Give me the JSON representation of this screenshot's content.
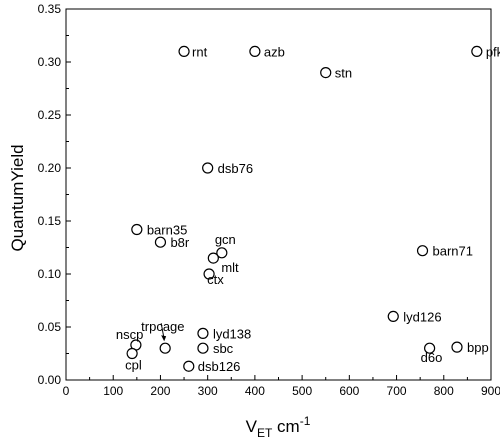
{
  "chart_data": {
    "type": "scatter",
    "title": "",
    "xlabel": {
      "main": "V",
      "sub": "ET",
      "unit": " cm",
      "sup": "-1"
    },
    "ylabel": "QuantumYield",
    "xlim": [
      0,
      900
    ],
    "ylim": [
      0,
      0.35
    ],
    "xticks": [
      "0",
      "100",
      "200",
      "300",
      "400",
      "500",
      "600",
      "700",
      "800",
      "900"
    ],
    "yticks": [
      "0.00",
      "0.05",
      "0.10",
      "0.15",
      "0.20",
      "0.25",
      "0.30",
      "0.35"
    ],
    "grid": false,
    "marker": "open-circle",
    "points": [
      {
        "label": "rnt",
        "x": 250,
        "y": 0.31
      },
      {
        "label": "azb",
        "x": 400,
        "y": 0.31
      },
      {
        "label": "stn",
        "x": 550,
        "y": 0.29
      },
      {
        "label": "pfk",
        "x": 870,
        "y": 0.31
      },
      {
        "label": "dsb76",
        "x": 300,
        "y": 0.2
      },
      {
        "label": "barn35",
        "x": 150,
        "y": 0.142
      },
      {
        "label": "b8r",
        "x": 200,
        "y": 0.13
      },
      {
        "label": "gcn",
        "x": 330,
        "y": 0.12
      },
      {
        "label": "mlt",
        "x": 312,
        "y": 0.115
      },
      {
        "label": "ctx",
        "x": 303,
        "y": 0.1
      },
      {
        "label": "barn71",
        "x": 755,
        "y": 0.122
      },
      {
        "label": "lyd126",
        "x": 693,
        "y": 0.06
      },
      {
        "label": "trpcage",
        "x": 210,
        "y": 0.03
      },
      {
        "label": "nscp",
        "x": 148,
        "y": 0.033
      },
      {
        "label": "cpl",
        "x": 140,
        "y": 0.025
      },
      {
        "label": "lyd138",
        "x": 290,
        "y": 0.044
      },
      {
        "label": "sbc",
        "x": 290,
        "y": 0.03
      },
      {
        "label": "dsb126",
        "x": 260,
        "y": 0.013
      },
      {
        "label": "d6o",
        "x": 770,
        "y": 0.03
      },
      {
        "label": "bpp",
        "x": 828,
        "y": 0.031
      }
    ]
  }
}
